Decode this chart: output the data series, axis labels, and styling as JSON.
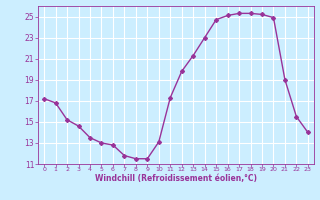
{
  "x": [
    0,
    1,
    2,
    3,
    4,
    5,
    6,
    7,
    8,
    9,
    10,
    11,
    12,
    13,
    14,
    15,
    16,
    17,
    18,
    19,
    20,
    21,
    22,
    23
  ],
  "y": [
    17.2,
    16.8,
    15.2,
    14.6,
    13.5,
    13.0,
    12.8,
    11.8,
    11.5,
    11.5,
    13.1,
    17.3,
    19.8,
    21.3,
    23.0,
    24.7,
    25.1,
    25.3,
    25.3,
    25.2,
    24.9,
    19.0,
    15.5,
    14.0
  ],
  "line_color": "#993399",
  "marker": "D",
  "marker_size": 2,
  "bg_color": "#cceeff",
  "grid_color": "#ffffff",
  "xlabel": "Windchill (Refroidissement éolien,°C)",
  "xlabel_color": "#993399",
  "tick_color": "#993399",
  "ylim": [
    11,
    26
  ],
  "xlim": [
    -0.5,
    23.5
  ],
  "yticks": [
    11,
    13,
    15,
    17,
    19,
    21,
    23,
    25
  ],
  "xticks": [
    0,
    1,
    2,
    3,
    4,
    5,
    6,
    7,
    8,
    9,
    10,
    11,
    12,
    13,
    14,
    15,
    16,
    17,
    18,
    19,
    20,
    21,
    22,
    23
  ],
  "linewidth": 1.0,
  "spine_color": "#993399"
}
